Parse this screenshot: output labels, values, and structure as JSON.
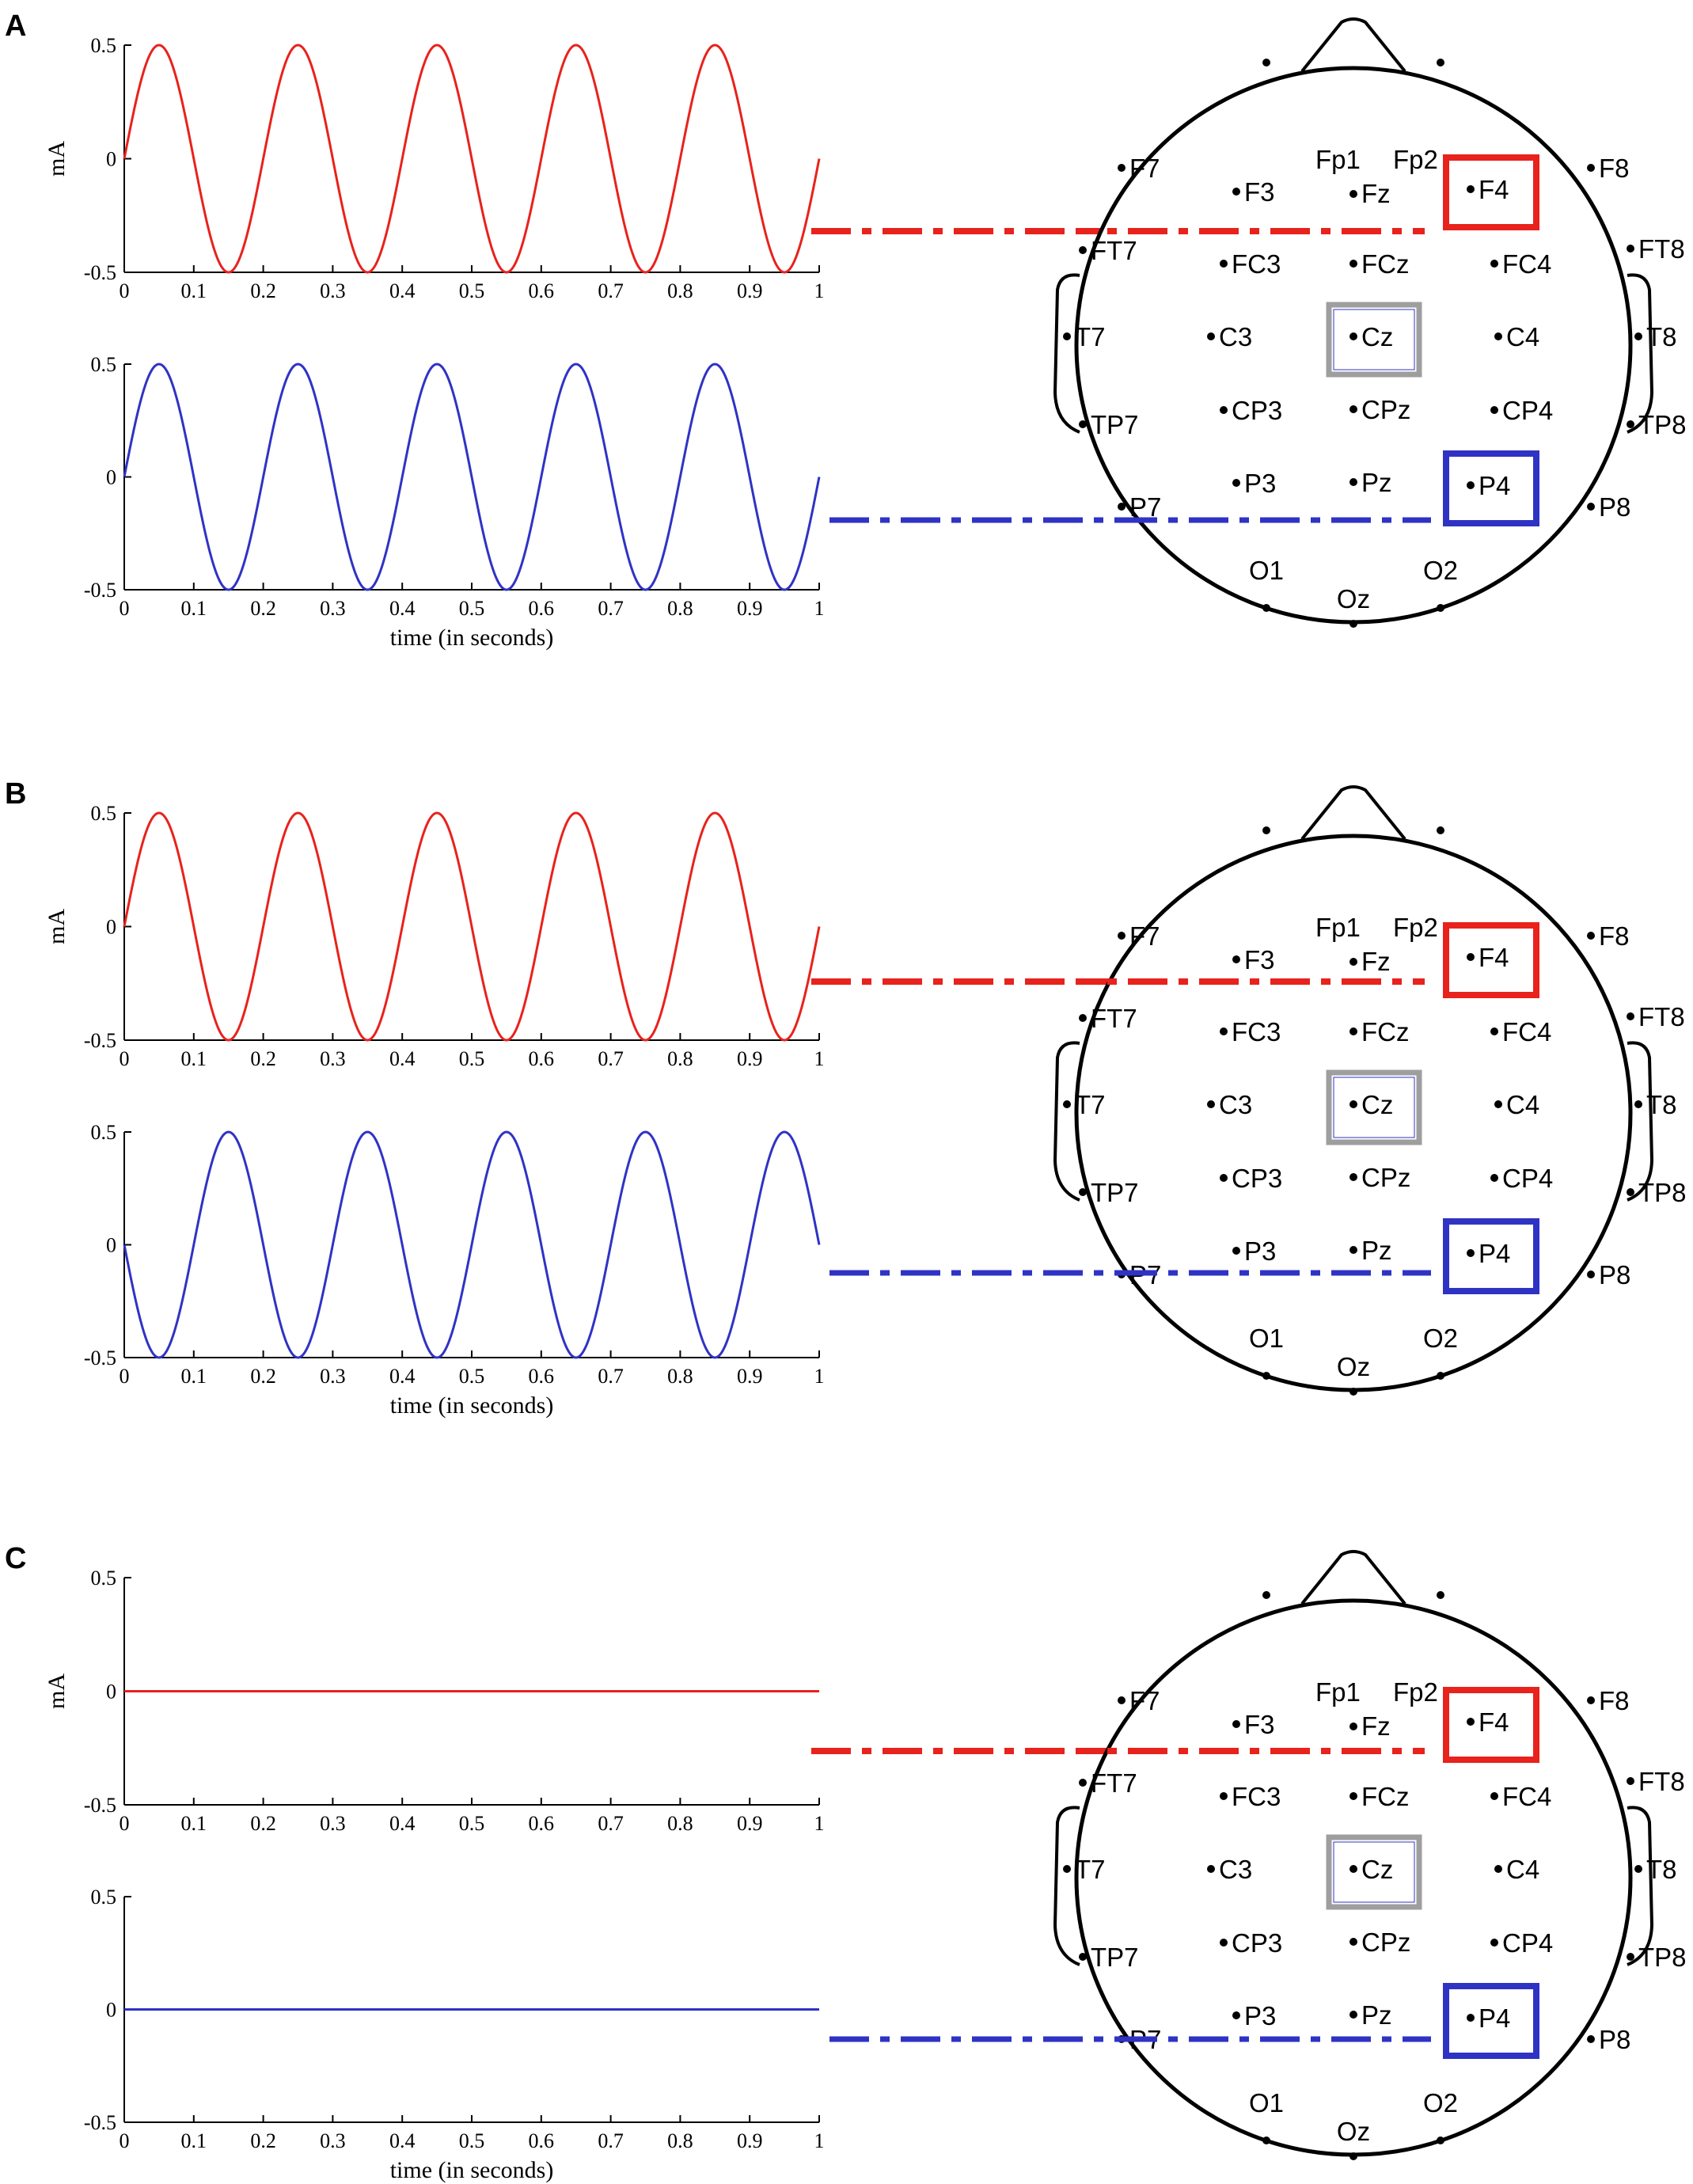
{
  "figure": {
    "panels": [
      {
        "letter": "A",
        "condition": "in-phase",
        "phase_offset_deg": 0,
        "top": {
          "ylabel": "mA",
          "xlabel": "",
          "color": "#e8221c",
          "frequency_hz": 5,
          "amplitude_ma": 0.5,
          "phase_deg": 0,
          "xlim": [
            0,
            1
          ],
          "ylim": [
            -0.5,
            0.5
          ],
          "xticks": [
            "0",
            "0.1",
            "0.2",
            "0.3",
            "0.4",
            "0.5",
            "0.6",
            "0.7",
            "0.8",
            "0.9",
            "1"
          ],
          "yticks": [
            "0.5",
            "0",
            "-0.5"
          ],
          "target_electrode": "F4"
        },
        "bottom": {
          "ylabel": "",
          "xlabel": "time (in seconds)",
          "color": "#2f33c4",
          "frequency_hz": 5,
          "amplitude_ma": 0.5,
          "phase_deg": 0,
          "xlim": [
            0,
            1
          ],
          "ylim": [
            -0.5,
            0.5
          ],
          "xticks": [
            "0",
            "0.1",
            "0.2",
            "0.3",
            "0.4",
            "0.5",
            "0.6",
            "0.7",
            "0.8",
            "0.9",
            "1"
          ],
          "yticks": [
            "0.5",
            "0",
            "-0.5"
          ],
          "target_electrode": "P4"
        }
      },
      {
        "letter": "B",
        "condition": "anti-phase",
        "phase_offset_deg": 180,
        "top": {
          "ylabel": "mA",
          "xlabel": "",
          "color": "#e8221c",
          "frequency_hz": 5,
          "amplitude_ma": 0.5,
          "phase_deg": 0,
          "xlim": [
            0,
            1
          ],
          "ylim": [
            -0.5,
            0.5
          ],
          "xticks": [
            "0",
            "0.1",
            "0.2",
            "0.3",
            "0.4",
            "0.5",
            "0.6",
            "0.7",
            "0.8",
            "0.9",
            "1"
          ],
          "yticks": [
            "0.5",
            "0",
            "-0.5"
          ],
          "target_electrode": "F4"
        },
        "bottom": {
          "ylabel": "",
          "xlabel": "time (in seconds)",
          "color": "#2f33c4",
          "frequency_hz": 5,
          "amplitude_ma": 0.5,
          "phase_deg": 180,
          "xlim": [
            0,
            1
          ],
          "ylim": [
            -0.5,
            0.5
          ],
          "xticks": [
            "0",
            "0.1",
            "0.2",
            "0.3",
            "0.4",
            "0.5",
            "0.6",
            "0.7",
            "0.8",
            "0.9",
            "1"
          ],
          "yticks": [
            "0.5",
            "0",
            "-0.5"
          ],
          "target_electrode": "P4"
        }
      },
      {
        "letter": "C",
        "condition": "sham",
        "phase_offset_deg": 0,
        "top": {
          "ylabel": "mA",
          "xlabel": "",
          "color": "#e8221c",
          "frequency_hz": 5,
          "amplitude_ma": 0,
          "phase_deg": 0,
          "xlim": [
            0,
            1
          ],
          "ylim": [
            -0.5,
            0.5
          ],
          "xticks": [
            "0",
            "0.1",
            "0.2",
            "0.3",
            "0.4",
            "0.5",
            "0.6",
            "0.7",
            "0.8",
            "0.9",
            "1"
          ],
          "yticks": [
            "0.5",
            "0",
            "-0.5"
          ],
          "target_electrode": "F4"
        },
        "bottom": {
          "ylabel": "",
          "xlabel": "time (in seconds)",
          "color": "#2f33c4",
          "frequency_hz": 5,
          "amplitude_ma": 0,
          "phase_deg": 0,
          "xlim": [
            0,
            1
          ],
          "ylim": [
            -0.5,
            0.5
          ],
          "xticks": [
            "0",
            "0.1",
            "0.2",
            "0.3",
            "0.4",
            "0.5",
            "0.6",
            "0.7",
            "0.8",
            "0.9",
            "1"
          ],
          "yticks": [
            "0.5",
            "0",
            "-0.5"
          ],
          "target_electrode": "P4"
        }
      }
    ],
    "montage": {
      "electrodes": [
        "Fp1",
        "Fp2",
        "F7",
        "F3",
        "Fz",
        "F4",
        "F8",
        "FT7",
        "FC3",
        "FCz",
        "FC4",
        "FT8",
        "T7",
        "C3",
        "Cz",
        "C4",
        "T8",
        "TP7",
        "CP3",
        "CPz",
        "CP4",
        "TP8",
        "P7",
        "P3",
        "Pz",
        "P4",
        "P8",
        "O1",
        "Oz",
        "O2"
      ],
      "highlight_red": "F4",
      "highlight_blue": "P4",
      "highlight_gray": "Cz",
      "colors": {
        "red": "#e8221c",
        "blue": "#2f33c4",
        "gray": "#9e9e9e"
      }
    }
  }
}
